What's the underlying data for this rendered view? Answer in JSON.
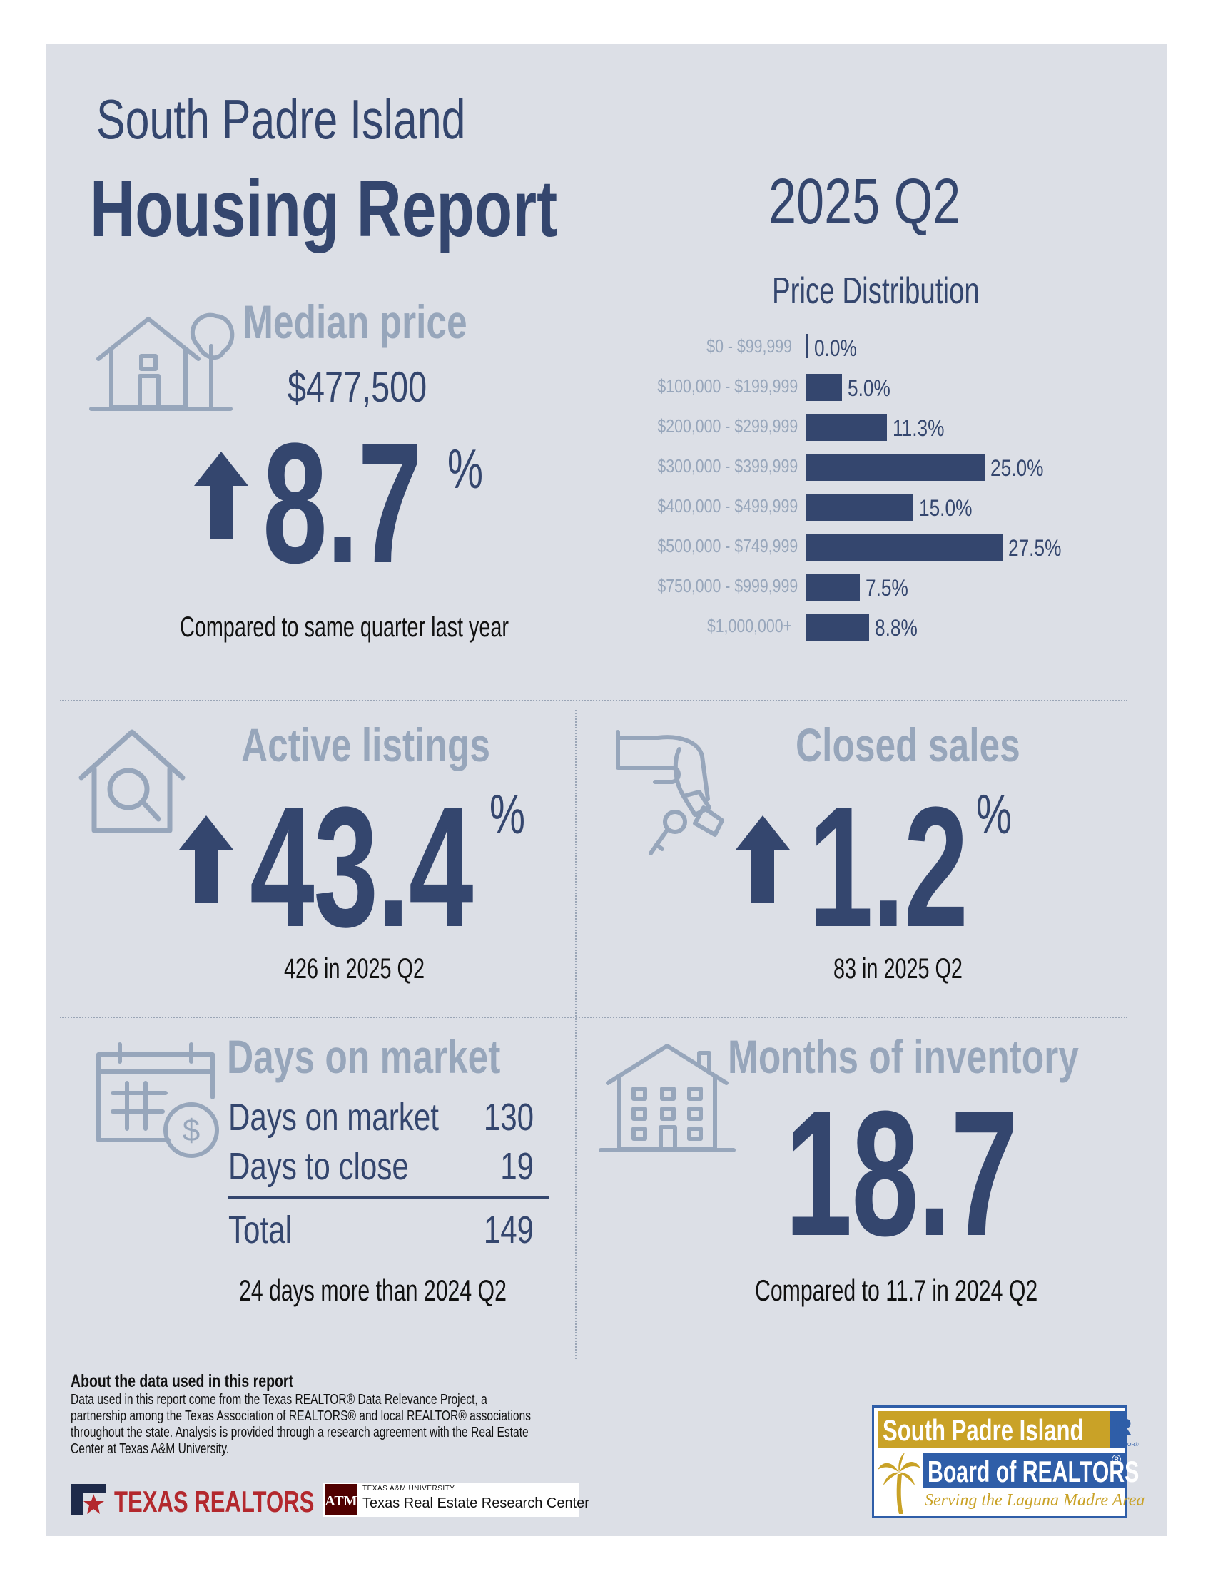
{
  "header": {
    "location": "South Padre Island",
    "title": "Housing Report",
    "period": "2025 Q2"
  },
  "median_price": {
    "label": "Median price",
    "value": "$477,500",
    "change": "8.7",
    "unit": "%",
    "direction": "up",
    "note": "Compared to same quarter last year"
  },
  "price_distribution": {
    "title": "Price Distribution",
    "chart_data": {
      "type": "bar",
      "title": "Price Distribution",
      "categories": [
        "$0 - $99,999",
        "$100,000 - $199,999",
        "$200,000 - $299,999",
        "$300,000 - $399,999",
        "$400,000 - $499,999",
        "$500,000 - $749,999",
        "$750,000 - $999,999",
        "$1,000,000+"
      ],
      "values": [
        0.0,
        5.0,
        11.3,
        25.0,
        15.0,
        27.5,
        7.5,
        8.8
      ],
      "value_labels": [
        "0.0%",
        "5.0%",
        "11.3%",
        "25.0%",
        "15.0%",
        "27.5%",
        "7.5%",
        "8.8%"
      ],
      "orientation": "horizontal"
    }
  },
  "active_listings": {
    "label": "Active listings",
    "change": "43.4",
    "unit": "%",
    "direction": "up",
    "note": "426 in 2025 Q2"
  },
  "closed_sales": {
    "label": "Closed sales",
    "change": "1.2",
    "unit": "%",
    "direction": "up",
    "note": "83 in 2025 Q2"
  },
  "days_on_market": {
    "label": "Days on market",
    "rows": [
      {
        "label": "Days on market",
        "value": "130"
      },
      {
        "label": "Days to close",
        "value": "19"
      }
    ],
    "total_label": "Total",
    "total_value": "149",
    "note": "24 days more than 2024 Q2"
  },
  "months_inventory": {
    "label": "Months of inventory",
    "value": "18.7",
    "note": "Compared to 11.7 in 2024 Q2"
  },
  "footer": {
    "about_title": "About the data used in this report",
    "about_text": "Data used in this report come from the Texas REALTOR® Data Relevance Project, a partnership among the Texas Association of REALTORS® and local REALTOR® associations throughout the state. Analysis is provided through a research agreement with the Real Estate Center at Texas A&M University.",
    "texas_realtors": "TEXAS REALTORS",
    "tamu_small": "TEXAS A&M UNIVERSITY",
    "tamu_center": "Texas Real Estate Research Center",
    "board_line1": "South Padre Island",
    "board_line2": "Board of REALTORS",
    "board_reg": "®",
    "board_tagline": "Serving the Laguna Madre Area",
    "realtor_mark": "R",
    "realtor_small": "REALTOR®"
  },
  "colors": {
    "navy": "#34466e",
    "grey_blue": "#97a6bb",
    "panel": "#dcdfe6",
    "gold": "#c9a227"
  }
}
